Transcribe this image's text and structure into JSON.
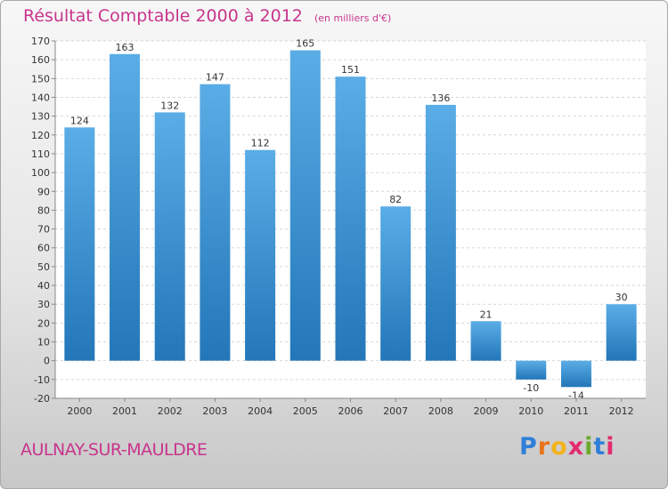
{
  "title": "Résultat Comptable 2000 à 2012",
  "subtitle": "(en milliers d'€)",
  "commune": "AULNAY-SUR-MAULDRE",
  "logo": {
    "letters": [
      "P",
      "r",
      "o",
      "x",
      "i",
      "t",
      "i"
    ],
    "colors": [
      "#2f7fd8",
      "#e8731a",
      "#f2b31c",
      "#e32a6d",
      "#6aab2e",
      "#2f7fd8",
      "#e32a6d"
    ]
  },
  "colors": {
    "title": "#c8348c",
    "bar_top": "#5aade6",
    "bar_bottom": "#2376b8"
  },
  "chart_data": {
    "type": "bar",
    "title": "Résultat Comptable 2000 à 2012",
    "ylabel": "en milliers d'€",
    "categories": [
      "2000",
      "2001",
      "2002",
      "2003",
      "2004",
      "2005",
      "2006",
      "2007",
      "2008",
      "2009",
      "2010",
      "2011",
      "2012"
    ],
    "values": [
      124,
      163,
      132,
      147,
      112,
      165,
      151,
      82,
      136,
      21,
      -10,
      -14,
      30
    ],
    "ylim": [
      -20,
      170
    ],
    "yticks": [
      -20,
      -10,
      0,
      10,
      20,
      30,
      40,
      50,
      60,
      70,
      80,
      90,
      100,
      110,
      120,
      130,
      140,
      150,
      160,
      170
    ],
    "grid": true
  }
}
